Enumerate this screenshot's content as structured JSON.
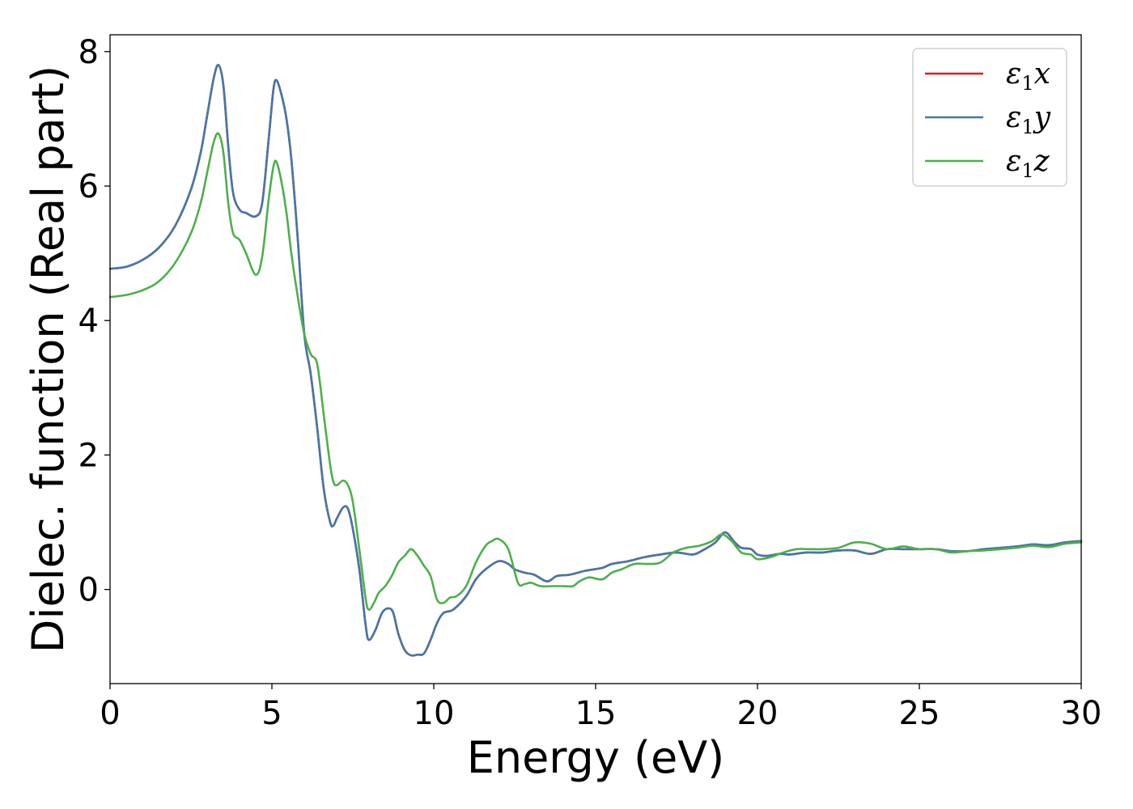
{
  "chart_data": {
    "type": "line",
    "title": "",
    "xlabel": "Energy (eV)",
    "ylabel": "Dielec. function (Real part)",
    "xlim": [
      0,
      30
    ],
    "ylim": [
      -1.4,
      8.25
    ],
    "xticks": [
      0,
      5,
      10,
      15,
      20,
      25,
      30
    ],
    "yticks": [
      0,
      2,
      4,
      6,
      8
    ],
    "grid": false,
    "legend_position": "top-right",
    "series": [
      {
        "name": "ε₁x",
        "name_base": "ε",
        "name_sub": "1",
        "name_var": "x",
        "color": "#e41a1c",
        "x": [
          0,
          0.5,
          1.0,
          1.5,
          2.0,
          2.5,
          2.8,
          3.0,
          3.2,
          3.35,
          3.5,
          3.65,
          3.8,
          4.0,
          4.2,
          4.5,
          4.7,
          4.9,
          5.05,
          5.15,
          5.3,
          5.45,
          5.6,
          5.8,
          6.0,
          6.2,
          6.4,
          6.6,
          6.8,
          6.9,
          7.0,
          7.2,
          7.35,
          7.5,
          7.7,
          7.9,
          8.0,
          8.2,
          8.4,
          8.6,
          8.75,
          8.9,
          9.1,
          9.3,
          9.5,
          9.7,
          9.9,
          10.1,
          10.3,
          10.6,
          11.0,
          11.3,
          11.6,
          12.0,
          12.3,
          12.5,
          12.8,
          13.1,
          13.5,
          13.8,
          14.2,
          14.7,
          15.2,
          15.5,
          16.0,
          16.5,
          17.0,
          17.5,
          18.0,
          18.3,
          18.7,
          19.0,
          19.3,
          19.5,
          19.8,
          20.0,
          20.3,
          20.7,
          21.0,
          21.5,
          22.0,
          22.5,
          23.0,
          23.5,
          24.0,
          24.5,
          25.0,
          25.5,
          26.0,
          26.5,
          27.0,
          27.5,
          28.0,
          28.5,
          29.0,
          29.5,
          30.0
        ],
        "y": [
          4.77,
          4.8,
          4.9,
          5.08,
          5.4,
          5.95,
          6.5,
          7.05,
          7.6,
          7.8,
          7.5,
          6.6,
          5.9,
          5.65,
          5.6,
          5.55,
          5.75,
          6.7,
          7.45,
          7.57,
          7.35,
          7.0,
          6.4,
          5.2,
          3.8,
          3.2,
          2.4,
          1.5,
          1.0,
          0.95,
          1.05,
          1.22,
          1.2,
          0.9,
          0.3,
          -0.55,
          -0.75,
          -0.6,
          -0.35,
          -0.28,
          -0.35,
          -0.65,
          -0.9,
          -0.98,
          -0.97,
          -0.95,
          -0.75,
          -0.5,
          -0.35,
          -0.3,
          -0.1,
          0.15,
          0.3,
          0.42,
          0.38,
          0.3,
          0.25,
          0.22,
          0.12,
          0.2,
          0.22,
          0.28,
          0.32,
          0.38,
          0.42,
          0.48,
          0.52,
          0.55,
          0.52,
          0.58,
          0.7,
          0.85,
          0.7,
          0.62,
          0.6,
          0.52,
          0.5,
          0.53,
          0.52,
          0.55,
          0.55,
          0.58,
          0.58,
          0.53,
          0.6,
          0.6,
          0.6,
          0.6,
          0.57,
          0.57,
          0.6,
          0.62,
          0.64,
          0.67,
          0.66,
          0.7,
          0.72
        ]
      },
      {
        "name": "ε₁y",
        "name_base": "ε",
        "name_sub": "1",
        "name_var": "y",
        "color": "#4477aa",
        "x": [
          0,
          0.5,
          1.0,
          1.5,
          2.0,
          2.5,
          2.8,
          3.0,
          3.2,
          3.35,
          3.5,
          3.65,
          3.8,
          4.0,
          4.2,
          4.5,
          4.7,
          4.9,
          5.05,
          5.15,
          5.3,
          5.45,
          5.6,
          5.8,
          6.0,
          6.2,
          6.4,
          6.6,
          6.8,
          6.9,
          7.0,
          7.2,
          7.35,
          7.5,
          7.7,
          7.9,
          8.0,
          8.2,
          8.4,
          8.6,
          8.75,
          8.9,
          9.1,
          9.3,
          9.5,
          9.7,
          9.9,
          10.1,
          10.3,
          10.6,
          11.0,
          11.3,
          11.6,
          12.0,
          12.3,
          12.5,
          12.8,
          13.1,
          13.5,
          13.8,
          14.2,
          14.7,
          15.2,
          15.5,
          16.0,
          16.5,
          17.0,
          17.5,
          18.0,
          18.3,
          18.7,
          19.0,
          19.3,
          19.5,
          19.8,
          20.0,
          20.3,
          20.7,
          21.0,
          21.5,
          22.0,
          22.5,
          23.0,
          23.5,
          24.0,
          24.5,
          25.0,
          25.5,
          26.0,
          26.5,
          27.0,
          27.5,
          28.0,
          28.5,
          29.0,
          29.5,
          30.0
        ],
        "y": [
          4.77,
          4.8,
          4.9,
          5.08,
          5.4,
          5.95,
          6.5,
          7.05,
          7.6,
          7.8,
          7.5,
          6.6,
          5.9,
          5.65,
          5.6,
          5.55,
          5.75,
          6.7,
          7.45,
          7.57,
          7.35,
          7.0,
          6.4,
          5.2,
          3.8,
          3.2,
          2.4,
          1.5,
          1.0,
          0.95,
          1.05,
          1.22,
          1.2,
          0.9,
          0.3,
          -0.55,
          -0.75,
          -0.6,
          -0.35,
          -0.28,
          -0.35,
          -0.65,
          -0.9,
          -0.98,
          -0.97,
          -0.95,
          -0.75,
          -0.5,
          -0.35,
          -0.3,
          -0.1,
          0.15,
          0.3,
          0.42,
          0.38,
          0.3,
          0.25,
          0.22,
          0.12,
          0.2,
          0.22,
          0.28,
          0.32,
          0.38,
          0.42,
          0.48,
          0.52,
          0.55,
          0.52,
          0.58,
          0.7,
          0.85,
          0.7,
          0.62,
          0.6,
          0.52,
          0.5,
          0.53,
          0.52,
          0.55,
          0.55,
          0.58,
          0.58,
          0.53,
          0.6,
          0.6,
          0.6,
          0.6,
          0.57,
          0.57,
          0.6,
          0.62,
          0.64,
          0.67,
          0.66,
          0.7,
          0.72
        ]
      },
      {
        "name": "ε₁z",
        "name_base": "ε",
        "name_sub": "1",
        "name_var": "z",
        "color": "#4daf4a",
        "x": [
          0,
          0.5,
          1.0,
          1.5,
          2.0,
          2.5,
          2.8,
          3.0,
          3.2,
          3.35,
          3.5,
          3.65,
          3.8,
          4.0,
          4.2,
          4.5,
          4.7,
          4.9,
          5.05,
          5.15,
          5.3,
          5.45,
          5.6,
          5.8,
          6.0,
          6.2,
          6.4,
          6.6,
          6.8,
          6.9,
          7.0,
          7.2,
          7.35,
          7.5,
          7.7,
          7.9,
          8.0,
          8.15,
          8.3,
          8.5,
          8.7,
          8.9,
          9.1,
          9.3,
          9.5,
          9.7,
          9.9,
          10.1,
          10.3,
          10.5,
          10.7,
          11.0,
          11.3,
          11.6,
          11.8,
          12.0,
          12.3,
          12.6,
          12.8,
          13.0,
          13.3,
          13.7,
          14.0,
          14.3,
          14.5,
          14.8,
          15.2,
          15.5,
          15.8,
          16.2,
          16.6,
          17.0,
          17.4,
          17.8,
          18.2,
          18.6,
          18.9,
          19.2,
          19.5,
          19.8,
          20.0,
          20.4,
          20.8,
          21.2,
          21.6,
          22.0,
          22.5,
          23.0,
          23.5,
          24.0,
          24.5,
          25.0,
          25.5,
          26.0,
          26.5,
          27.0,
          27.5,
          28.0,
          28.5,
          29.0,
          29.5,
          30.0
        ],
        "y": [
          4.35,
          4.38,
          4.45,
          4.58,
          4.85,
          5.3,
          5.75,
          6.2,
          6.65,
          6.78,
          6.5,
          5.75,
          5.3,
          5.2,
          5.0,
          4.68,
          4.95,
          5.8,
          6.3,
          6.35,
          6.05,
          5.6,
          5.0,
          4.35,
          3.8,
          3.5,
          3.35,
          2.6,
          1.85,
          1.6,
          1.55,
          1.62,
          1.55,
          1.3,
          0.6,
          -0.15,
          -0.3,
          -0.2,
          -0.05,
          0.05,
          0.2,
          0.4,
          0.5,
          0.6,
          0.5,
          0.35,
          0.2,
          -0.15,
          -0.2,
          -0.12,
          -0.1,
          0.05,
          0.4,
          0.65,
          0.72,
          0.75,
          0.6,
          0.1,
          0.08,
          0.1,
          0.05,
          0.05,
          0.05,
          0.05,
          0.12,
          0.18,
          0.15,
          0.25,
          0.3,
          0.38,
          0.38,
          0.4,
          0.55,
          0.62,
          0.65,
          0.72,
          0.82,
          0.72,
          0.55,
          0.52,
          0.45,
          0.48,
          0.55,
          0.6,
          0.6,
          0.6,
          0.62,
          0.7,
          0.68,
          0.6,
          0.64,
          0.6,
          0.6,
          0.55,
          0.57,
          0.58,
          0.6,
          0.62,
          0.65,
          0.63,
          0.68,
          0.7
        ]
      }
    ]
  }
}
